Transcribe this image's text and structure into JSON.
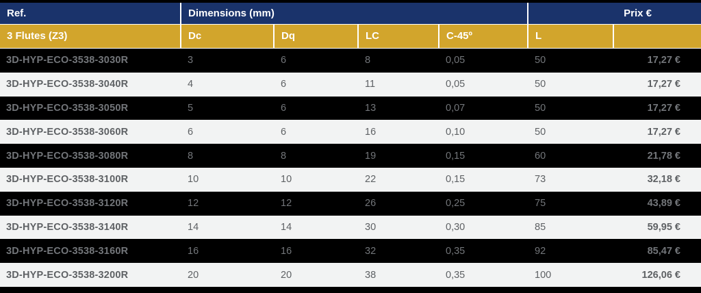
{
  "table": {
    "header": {
      "ref": "Ref.",
      "dimensions": "Dimensions (mm)",
      "prix": "Prix €"
    },
    "subheader": {
      "flutes": "3 Flutes (Z3)",
      "cols": [
        "Dc",
        "Dq",
        "LC",
        "C-45º",
        "L",
        ""
      ]
    },
    "rows": [
      {
        "ref": "3D-HYP-ECO-3538-3030R",
        "dc": "3",
        "dq": "6",
        "lc": "8",
        "c45": "0,05",
        "l": "50",
        "prix": "17,27 €"
      },
      {
        "ref": "3D-HYP-ECO-3538-3040R",
        "dc": "4",
        "dq": "6",
        "lc": "11",
        "c45": "0,05",
        "l": "50",
        "prix": "17,27 €"
      },
      {
        "ref": "3D-HYP-ECO-3538-3050R",
        "dc": "5",
        "dq": "6",
        "lc": "13",
        "c45": "0,07",
        "l": "50",
        "prix": "17,27 €"
      },
      {
        "ref": "3D-HYP-ECO-3538-3060R",
        "dc": "6",
        "dq": "6",
        "lc": "16",
        "c45": "0,10",
        "l": "50",
        "prix": "17,27 €"
      },
      {
        "ref": "3D-HYP-ECO-3538-3080R",
        "dc": "8",
        "dq": "8",
        "lc": "19",
        "c45": "0,15",
        "l": "60",
        "prix": "21,78 €"
      },
      {
        "ref": "3D-HYP-ECO-3538-3100R",
        "dc": "10",
        "dq": "10",
        "lc": "22",
        "c45": "0,15",
        "l": "73",
        "prix": "32,18 €"
      },
      {
        "ref": "3D-HYP-ECO-3538-3120R",
        "dc": "12",
        "dq": "12",
        "lc": "26",
        "c45": "0,25",
        "l": "75",
        "prix": "43,89 €"
      },
      {
        "ref": "3D-HYP-ECO-3538-3140R",
        "dc": "14",
        "dq": "14",
        "lc": "30",
        "c45": "0,30",
        "l": "85",
        "prix": "59,95 €"
      },
      {
        "ref": "3D-HYP-ECO-3538-3160R",
        "dc": "16",
        "dq": "16",
        "lc": "32",
        "c45": "0,35",
        "l": "92",
        "prix": "85,47 €"
      },
      {
        "ref": "3D-HYP-ECO-3538-3200R",
        "dc": "20",
        "dq": "20",
        "lc": "38",
        "c45": "0,35",
        "l": "100",
        "prix": "126,06 €"
      }
    ],
    "colors": {
      "navy": "#1a336b",
      "gold": "#d2a52c",
      "row_dark_bg": "#000000",
      "row_light_bg": "#f2f3f3",
      "row_dark_text": "#73767a",
      "row_light_text": "#5e6164"
    }
  }
}
